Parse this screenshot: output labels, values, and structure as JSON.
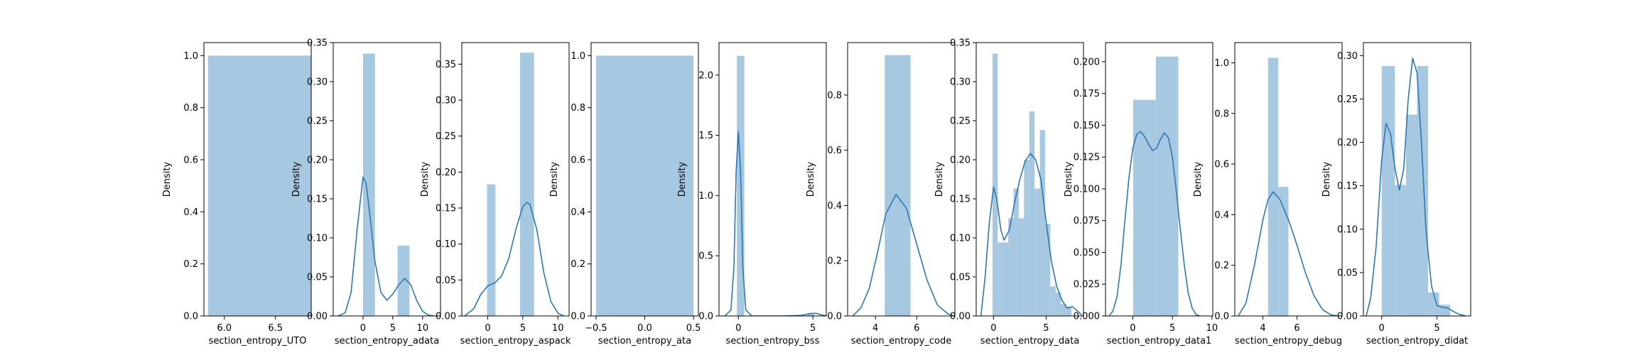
{
  "figure": {
    "bar_color": "#a6c8e0",
    "line_color": "#2f77b4",
    "ylabel": "Density"
  },
  "chart_data": [
    {
      "type": "bar",
      "xlabel": "section_entropy_UTO",
      "ylabel": "Density",
      "xlim": [
        5.8,
        6.85
      ],
      "ylim": [
        0,
        1.05
      ],
      "xticks": [
        6.0,
        6.5
      ],
      "xtick_labels": [
        "6.0",
        "6.5"
      ],
      "yticks": [
        0,
        0.2,
        0.4,
        0.6,
        0.8,
        1.0
      ],
      "ytick_labels": [
        "0.0",
        "0.2",
        "0.4",
        "0.6",
        "0.8",
        "1.0"
      ],
      "bars": [
        {
          "x0": 5.84,
          "x1": 6.85,
          "height": 1.0
        }
      ],
      "kde": []
    },
    {
      "type": "bar",
      "xlabel": "section_entropy_adata",
      "ylabel": "Density",
      "xlim": [
        -5.0,
        13.0
      ],
      "ylim": [
        0,
        0.35
      ],
      "xticks": [
        0,
        5,
        10
      ],
      "xtick_labels": [
        "0",
        "5",
        "10"
      ],
      "yticks": [
        0,
        0.05,
        0.1,
        0.15,
        0.2,
        0.25,
        0.3,
        0.35
      ],
      "ytick_labels": [
        "0.00",
        "0.05",
        "0.10",
        "0.15",
        "0.20",
        "0.25",
        "0.30",
        "0.35"
      ],
      "bars": [
        {
          "x0": 0.0,
          "x1": 2.0,
          "height": 0.336
        },
        {
          "x0": 5.8,
          "x1": 7.8,
          "height": 0.09
        }
      ],
      "kde": [
        [
          -4.2,
          0.0
        ],
        [
          -3,
          0.004
        ],
        [
          -2,
          0.03
        ],
        [
          -1,
          0.11
        ],
        [
          0,
          0.178
        ],
        [
          0.5,
          0.17
        ],
        [
          1,
          0.14
        ],
        [
          2,
          0.07
        ],
        [
          3,
          0.03
        ],
        [
          4,
          0.02
        ],
        [
          5,
          0.028
        ],
        [
          6,
          0.04
        ],
        [
          7,
          0.048
        ],
        [
          8,
          0.04
        ],
        [
          9,
          0.02
        ],
        [
          10,
          0.006
        ],
        [
          11,
          0.001
        ],
        [
          12,
          0.0
        ]
      ]
    },
    {
      "type": "bar",
      "xlabel": "section_entropy_aspack",
      "ylabel": "Density",
      "xlim": [
        -3.7,
        11.6
      ],
      "ylim": [
        0,
        0.38
      ],
      "xticks": [
        0,
        5,
        10
      ],
      "xtick_labels": [
        "0",
        "5",
        "10"
      ],
      "yticks": [
        0,
        0.05,
        0.1,
        0.15,
        0.2,
        0.25,
        0.3,
        0.35
      ],
      "ytick_labels": [
        "0.00",
        "0.05",
        "0.10",
        "0.15",
        "0.20",
        "0.25",
        "0.30",
        "0.35"
      ],
      "bars": [
        {
          "x0": -0.1,
          "x1": 1.1,
          "height": 0.183
        },
        {
          "x0": 4.6,
          "x1": 6.6,
          "height": 0.366
        }
      ],
      "kde": [
        [
          -3.3,
          0.0
        ],
        [
          -2,
          0.01
        ],
        [
          -1,
          0.03
        ],
        [
          0,
          0.042
        ],
        [
          1,
          0.046
        ],
        [
          2,
          0.056
        ],
        [
          3,
          0.08
        ],
        [
          4,
          0.12
        ],
        [
          5,
          0.152
        ],
        [
          5.6,
          0.158
        ],
        [
          6,
          0.155
        ],
        [
          7,
          0.12
        ],
        [
          8,
          0.06
        ],
        [
          9,
          0.02
        ],
        [
          10,
          0.004
        ],
        [
          10.8,
          0.0
        ]
      ]
    },
    {
      "type": "bar",
      "xlabel": "section_entropy_ata",
      "ylabel": "Density",
      "xlim": [
        -0.55,
        0.55
      ],
      "ylim": [
        0,
        1.05
      ],
      "xticks": [
        -0.5,
        0.0,
        0.5
      ],
      "xtick_labels": [
        "−0.5",
        "0.0",
        "0.5"
      ],
      "yticks": [
        0,
        0.2,
        0.4,
        0.6,
        0.8,
        1.0
      ],
      "ytick_labels": [
        "0.0",
        "0.2",
        "0.4",
        "0.6",
        "0.8",
        "1.0"
      ],
      "bars": [
        {
          "x0": -0.5,
          "x1": 0.5,
          "height": 1.0
        }
      ],
      "kde": []
    },
    {
      "type": "bar",
      "xlabel": "section_entropy_bss",
      "ylabel": "Density",
      "xlim": [
        -1.3,
        5.9
      ],
      "ylim": [
        0,
        2.27
      ],
      "xticks": [
        0,
        5
      ],
      "xtick_labels": [
        "0",
        "5"
      ],
      "yticks": [
        0,
        0.5,
        1.0,
        1.5,
        2.0
      ],
      "ytick_labels": [
        "0.0",
        "0.5",
        "1.0",
        "1.5",
        "2.0"
      ],
      "bars": [
        {
          "x0": -0.1,
          "x1": 0.4,
          "height": 2.16
        },
        {
          "x0": 4.6,
          "x1": 5.1,
          "height": 0.015
        }
      ],
      "kde": [
        [
          -0.9,
          0.0
        ],
        [
          -0.5,
          0.05
        ],
        [
          -0.3,
          0.4
        ],
        [
          -0.15,
          1.2
        ],
        [
          0,
          1.53
        ],
        [
          0.15,
          1.2
        ],
        [
          0.3,
          0.4
        ],
        [
          0.5,
          0.05
        ],
        [
          0.9,
          0.0
        ],
        [
          3,
          0.0
        ],
        [
          4.2,
          0.005
        ],
        [
          4.8,
          0.02
        ],
        [
          5.2,
          0.022
        ],
        [
          5.6,
          0.008
        ],
        [
          5.9,
          0.002
        ]
      ]
    },
    {
      "type": "bar",
      "xlabel": "section_entropy_code",
      "ylabel": "Density",
      "xlim": [
        2.65,
        7.85
      ],
      "ylim": [
        0,
        0.99
      ],
      "xticks": [
        4,
        6
      ],
      "xtick_labels": [
        "4",
        "6"
      ],
      "yticks": [
        0,
        0.2,
        0.4,
        0.6,
        0.8
      ],
      "ytick_labels": [
        "0.0",
        "0.2",
        "0.4",
        "0.6",
        "0.8"
      ],
      "bars": [
        {
          "x0": 4.45,
          "x1": 5.7,
          "height": 0.945
        }
      ],
      "kde": [
        [
          2.9,
          0.0
        ],
        [
          3.3,
          0.03
        ],
        [
          3.7,
          0.1
        ],
        [
          4.1,
          0.23
        ],
        [
          4.5,
          0.37
        ],
        [
          5.0,
          0.44
        ],
        [
          5.5,
          0.39
        ],
        [
          6.0,
          0.26
        ],
        [
          6.5,
          0.13
        ],
        [
          7.0,
          0.04
        ],
        [
          7.5,
          0.008
        ],
        [
          7.8,
          0.0
        ]
      ]
    },
    {
      "type": "bar",
      "xlabel": "section_entropy_data",
      "ylabel": "Density",
      "xlim": [
        -1.65,
        8.55
      ],
      "ylim": [
        0,
        0.35
      ],
      "xticks": [
        0,
        5
      ],
      "xtick_labels": [
        "0",
        "5"
      ],
      "yticks": [
        0,
        0.05,
        0.1,
        0.15,
        0.2,
        0.25,
        0.3,
        0.35
      ],
      "ytick_labels": [
        "0.00",
        "0.05",
        "0.10",
        "0.15",
        "0.20",
        "0.25",
        "0.30",
        "0.35"
      ],
      "bars": [
        {
          "x0": -0.1,
          "x1": 0.4,
          "height": 0.336
        },
        {
          "x0": 0.4,
          "x1": 0.9,
          "height": 0.094
        },
        {
          "x0": 0.9,
          "x1": 1.4,
          "height": 0.094
        },
        {
          "x0": 1.4,
          "x1": 1.9,
          "height": 0.125
        },
        {
          "x0": 1.9,
          "x1": 2.4,
          "height": 0.163
        },
        {
          "x0": 2.4,
          "x1": 2.9,
          "height": 0.125
        },
        {
          "x0": 2.9,
          "x1": 3.4,
          "height": 0.2
        },
        {
          "x0": 3.4,
          "x1": 3.9,
          "height": 0.262
        },
        {
          "x0": 3.9,
          "x1": 4.4,
          "height": 0.163
        },
        {
          "x0": 4.4,
          "x1": 4.9,
          "height": 0.238
        },
        {
          "x0": 4.9,
          "x1": 5.4,
          "height": 0.118
        },
        {
          "x0": 5.4,
          "x1": 5.9,
          "height": 0.038
        },
        {
          "x0": 5.9,
          "x1": 6.4,
          "height": 0.03
        },
        {
          "x0": 6.4,
          "x1": 6.9,
          "height": 0.015
        },
        {
          "x0": 6.9,
          "x1": 7.4,
          "height": 0.012
        }
      ],
      "kde": [
        [
          -1.2,
          0.0
        ],
        [
          -0.8,
          0.05
        ],
        [
          -0.4,
          0.12
        ],
        [
          0,
          0.165
        ],
        [
          0.3,
          0.15
        ],
        [
          0.7,
          0.11
        ],
        [
          1.0,
          0.097
        ],
        [
          1.5,
          0.11
        ],
        [
          2.0,
          0.145
        ],
        [
          2.5,
          0.175
        ],
        [
          3.0,
          0.198
        ],
        [
          3.5,
          0.208
        ],
        [
          4.0,
          0.2
        ],
        [
          4.5,
          0.175
        ],
        [
          5.0,
          0.12
        ],
        [
          5.5,
          0.07
        ],
        [
          6.0,
          0.038
        ],
        [
          6.5,
          0.02
        ],
        [
          7.0,
          0.01
        ],
        [
          7.5,
          0.012
        ],
        [
          8.0,
          0.006
        ],
        [
          8.4,
          0.001
        ]
      ]
    },
    {
      "type": "bar",
      "xlabel": "section_entropy_data1",
      "ylabel": "Density",
      "xlim": [
        -3.45,
        10.1
      ],
      "ylim": [
        0,
        0.215
      ],
      "xticks": [
        0,
        5,
        10
      ],
      "xtick_labels": [
        "0",
        "5",
        "10"
      ],
      "yticks": [
        0,
        0.025,
        0.05,
        0.075,
        0.1,
        0.125,
        0.15,
        0.175,
        0.2
      ],
      "ytick_labels": [
        "0.000",
        "0.025",
        "0.050",
        "0.075",
        "0.100",
        "0.125",
        "0.150",
        "0.175",
        "0.200"
      ],
      "bars": [
        {
          "x0": 0.05,
          "x1": 2.9,
          "height": 0.17
        },
        {
          "x0": 2.9,
          "x1": 5.75,
          "height": 0.204
        }
      ],
      "kde": [
        [
          -3.0,
          0.0
        ],
        [
          -2.5,
          0.004
        ],
        [
          -2.0,
          0.015
        ],
        [
          -1.5,
          0.04
        ],
        [
          -1.0,
          0.075
        ],
        [
          -0.5,
          0.108
        ],
        [
          0.0,
          0.132
        ],
        [
          0.5,
          0.143
        ],
        [
          1.0,
          0.145
        ],
        [
          1.5,
          0.141
        ],
        [
          2.0,
          0.135
        ],
        [
          2.5,
          0.13
        ],
        [
          3.0,
          0.132
        ],
        [
          3.5,
          0.139
        ],
        [
          4.0,
          0.144
        ],
        [
          4.5,
          0.14
        ],
        [
          5.0,
          0.125
        ],
        [
          5.5,
          0.098
        ],
        [
          6.0,
          0.068
        ],
        [
          6.5,
          0.04
        ],
        [
          7.0,
          0.018
        ],
        [
          7.5,
          0.006
        ],
        [
          8.0,
          0.001
        ],
        [
          8.5,
          0.0
        ]
      ]
    },
    {
      "type": "bar",
      "xlabel": "section_entropy_debug",
      "ylabel": "Density",
      "xlim": [
        2.35,
        8.65
      ],
      "ylim": [
        0,
        1.08
      ],
      "xticks": [
        4,
        6
      ],
      "xtick_labels": [
        "4",
        "6"
      ],
      "yticks": [
        0,
        0.2,
        0.4,
        0.6,
        0.8,
        1.0
      ],
      "ytick_labels": [
        "0.0",
        "0.2",
        "0.4",
        "0.6",
        "0.8",
        "1.0"
      ],
      "bars": [
        {
          "x0": 4.3,
          "x1": 4.9,
          "height": 1.02
        },
        {
          "x0": 4.9,
          "x1": 5.5,
          "height": 0.51
        }
      ],
      "kde": [
        [
          2.55,
          0.0
        ],
        [
          3.0,
          0.05
        ],
        [
          3.5,
          0.2
        ],
        [
          4.0,
          0.38
        ],
        [
          4.3,
          0.46
        ],
        [
          4.6,
          0.49
        ],
        [
          5.0,
          0.46
        ],
        [
          5.5,
          0.38
        ],
        [
          6.0,
          0.28
        ],
        [
          6.5,
          0.17
        ],
        [
          7.0,
          0.08
        ],
        [
          7.5,
          0.025
        ],
        [
          8.0,
          0.004
        ],
        [
          8.45,
          0.0
        ]
      ]
    },
    {
      "type": "bar",
      "xlabel": "section_entropy_didat",
      "ylabel": "Density",
      "xlim": [
        -1.65,
        8.05
      ],
      "ylim": [
        0,
        0.315
      ],
      "xticks": [
        0,
        5
      ],
      "xtick_labels": [
        "0",
        "5"
      ],
      "yticks": [
        0,
        0.05,
        0.1,
        0.15,
        0.2,
        0.25,
        0.3
      ],
      "ytick_labels": [
        "0.00",
        "0.05",
        "0.10",
        "0.15",
        "0.20",
        "0.25",
        "0.30"
      ],
      "bars": [
        {
          "x0": 0.0,
          "x1": 1.2,
          "height": 0.288
        },
        {
          "x0": 1.2,
          "x1": 2.2,
          "height": 0.151
        },
        {
          "x0": 2.2,
          "x1": 3.2,
          "height": 0.232
        },
        {
          "x0": 3.2,
          "x1": 4.2,
          "height": 0.288
        },
        {
          "x0": 4.2,
          "x1": 5.2,
          "height": 0.027
        },
        {
          "x0": 5.2,
          "x1": 6.2,
          "height": 0.013
        }
      ],
      "kde": [
        [
          -1.4,
          0.0
        ],
        [
          -1.0,
          0.02
        ],
        [
          -0.5,
          0.08
        ],
        [
          0,
          0.18
        ],
        [
          0.4,
          0.222
        ],
        [
          0.8,
          0.21
        ],
        [
          1.2,
          0.17
        ],
        [
          1.6,
          0.145
        ],
        [
          2.0,
          0.17
        ],
        [
          2.4,
          0.25
        ],
        [
          2.8,
          0.297
        ],
        [
          3.2,
          0.28
        ],
        [
          3.6,
          0.2
        ],
        [
          4.0,
          0.1
        ],
        [
          4.5,
          0.035
        ],
        [
          5.0,
          0.012
        ],
        [
          5.5,
          0.01
        ],
        [
          6.0,
          0.009
        ],
        [
          6.5,
          0.005
        ],
        [
          7.0,
          0.002
        ],
        [
          7.6,
          0.0
        ]
      ]
    }
  ]
}
